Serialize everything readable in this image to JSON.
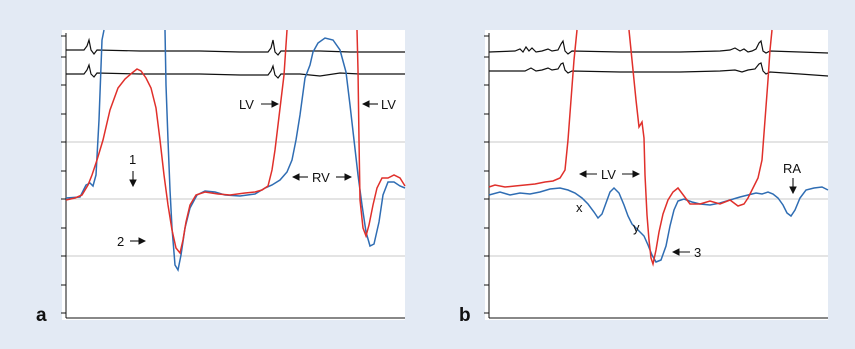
{
  "colors": {
    "background": "#e3eaf4",
    "panel": "#ffffff",
    "trace_red": "#e0302b",
    "trace_blue": "#2f6db3",
    "ecg": "#111111",
    "grid": "#c8c8c8"
  },
  "panels": [
    {
      "letter": "a",
      "labels": {
        "lv_left": "LV",
        "lv_right": "LV",
        "rv": "RV",
        "n1": "1",
        "n2": "2"
      }
    },
    {
      "letter": "b",
      "labels": {
        "lv": "LV",
        "ra": "RA",
        "x": "x",
        "y": "y",
        "n3": "3"
      }
    }
  ]
}
